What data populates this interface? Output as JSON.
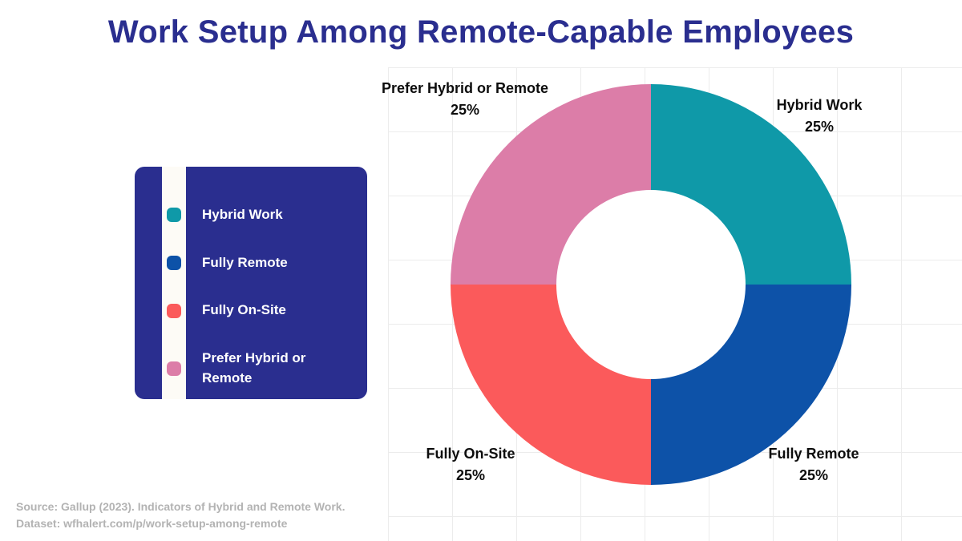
{
  "title": "Work Setup Among Remote-Capable Employees",
  "theme": {
    "title_color": "#2a2e8f",
    "legend_bg": "#2a2e8f",
    "legend_stripe": "#fdfbf6",
    "grid_color": "#ececec",
    "label_color": "#0d0d0d",
    "footer_color": "#b3b3b3"
  },
  "legend": {
    "items": [
      {
        "label": "Hybrid Work",
        "color": "#0f99a8"
      },
      {
        "label": "Fully Remote",
        "color": "#0d52a8"
      },
      {
        "label": "Fully On-Site",
        "color": "#fb5a5b"
      },
      {
        "label": "Prefer Hybrid or Remote",
        "color": "#dc7da8"
      }
    ]
  },
  "chart_data": {
    "type": "pie",
    "subtype": "donut",
    "title": "Work Setup Among Remote-Capable Employees",
    "categories": [
      "Hybrid Work",
      "Fully Remote",
      "Fully On-Site",
      "Prefer Hybrid or Remote"
    ],
    "values": [
      25,
      25,
      25,
      25
    ],
    "value_labels": [
      "25%",
      "25%",
      "25%",
      "25%"
    ],
    "unit": "%",
    "colors": [
      "#0f99a8",
      "#0d52a8",
      "#fb5a5b",
      "#dc7da8"
    ],
    "start_angle_deg": 0,
    "direction": "clockwise",
    "inner_radius_ratio": 0.47,
    "legend_position": "left",
    "grid": true
  },
  "footer": {
    "source": "Source: Gallup (2023). Indicators of Hybrid and Remote Work.",
    "dataset": "Dataset: wfhalert.com/p/work-setup-among-remote"
  }
}
